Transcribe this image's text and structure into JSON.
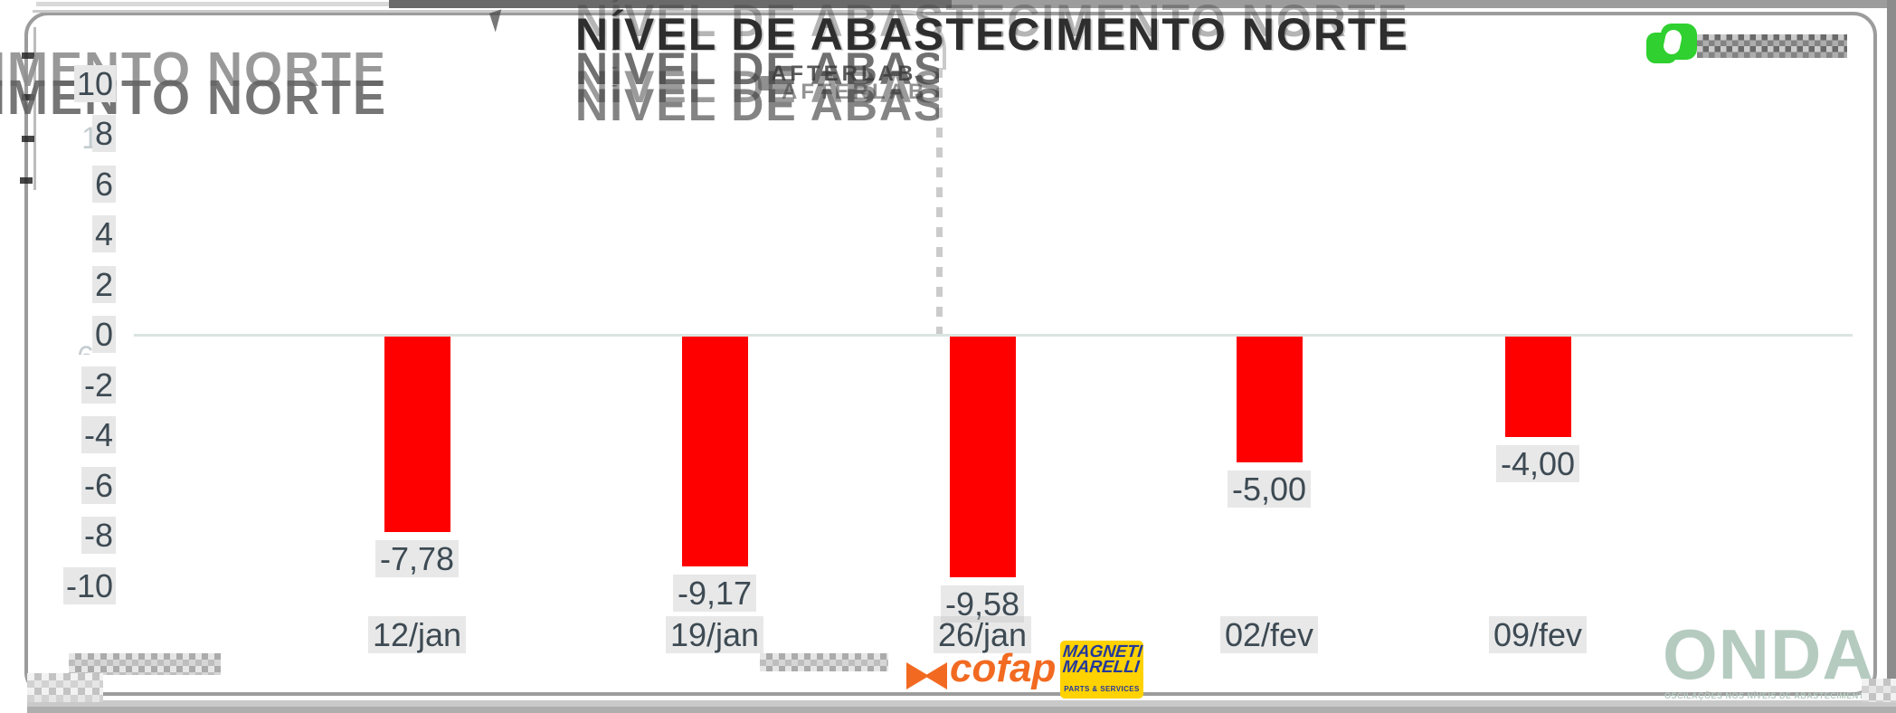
{
  "chart_data": {
    "type": "bar",
    "title": "NÍVEL DE ABASTECIMENTO NORTE",
    "categories": [
      "12/jan",
      "19/jan",
      "26/jan",
      "02/fev",
      "09/fev"
    ],
    "values": [
      -7.78,
      -9.17,
      -9.58,
      -5,
      -4
    ],
    "value_labels": [
      "-7,78",
      "-9,17",
      "-9,58",
      "-5,00",
      "-4,00"
    ],
    "yticks": [
      10,
      8,
      6,
      4,
      2,
      0,
      -2,
      -4,
      -6,
      -8,
      -10
    ],
    "ylim": [
      -10,
      10
    ],
    "xlabel": "",
    "ylabel": "",
    "bar_color": "#ff0000",
    "grid": "zero line only",
    "legend": "none"
  },
  "ghosts": {
    "afterlab_echo": "AFTERLAB",
    "ytick_echo": "10",
    "zero_echo": "6"
  },
  "branding": {
    "afterlab_name": "AFTERLAB",
    "cofap_wordmark": "cofap",
    "magneti_line1": "MAGNETI",
    "magneti_line2": "MARELLI",
    "magneti_sub": "PARTS & SERVICES",
    "onda_wordmark": "ONDA",
    "onda_tagline": "OSCILAÇÕES NOS NÍVEIS DE ABASTECIMENTO E PREÇOS"
  },
  "colors": {
    "bar_red": "#ff0000",
    "axis_text": "#3d4a53",
    "zero_line": "#dbe4e0",
    "afterlab_green": "#2fd02f",
    "cofap_orange": "#f26a21",
    "magneti_yellow": "#ffd200",
    "magneti_blue": "#24399b",
    "onda_pale_green": "#b5cbc0"
  }
}
